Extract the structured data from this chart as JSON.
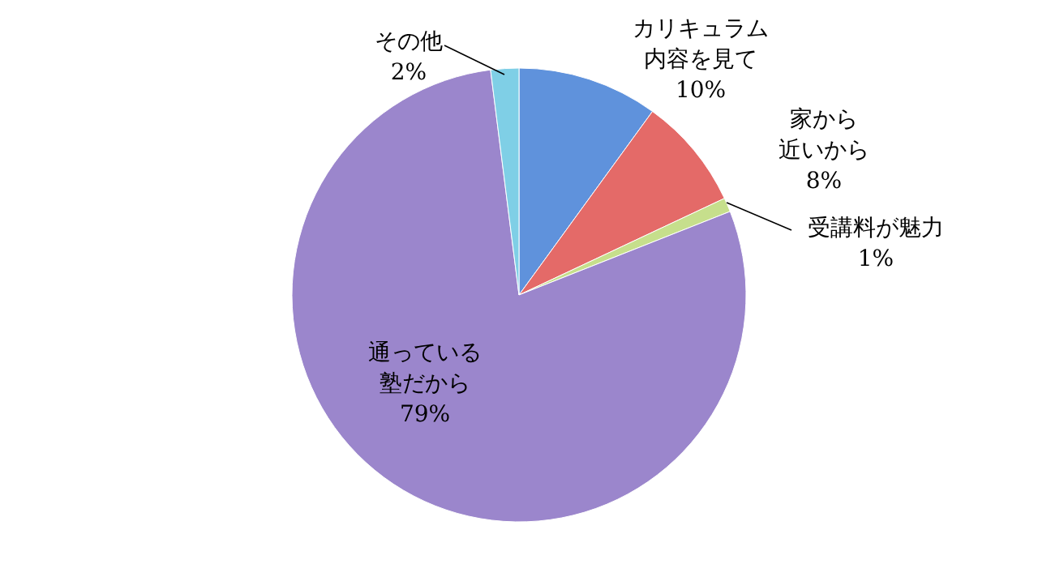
{
  "chart_data": {
    "type": "pie",
    "categories": [
      "カリキュラム内容を見て",
      "家から近いから",
      "受講料が魅力",
      "通っている塾だから",
      "その他"
    ],
    "values": [
      10,
      8,
      1,
      79,
      2
    ],
    "value_labels": [
      "10%",
      "8%",
      "1%",
      "79%",
      "2%"
    ],
    "colors": [
      "#5f92dc",
      "#e46a68",
      "#c6df8c",
      "#9b86cc",
      "#7fcfe6"
    ]
  }
}
